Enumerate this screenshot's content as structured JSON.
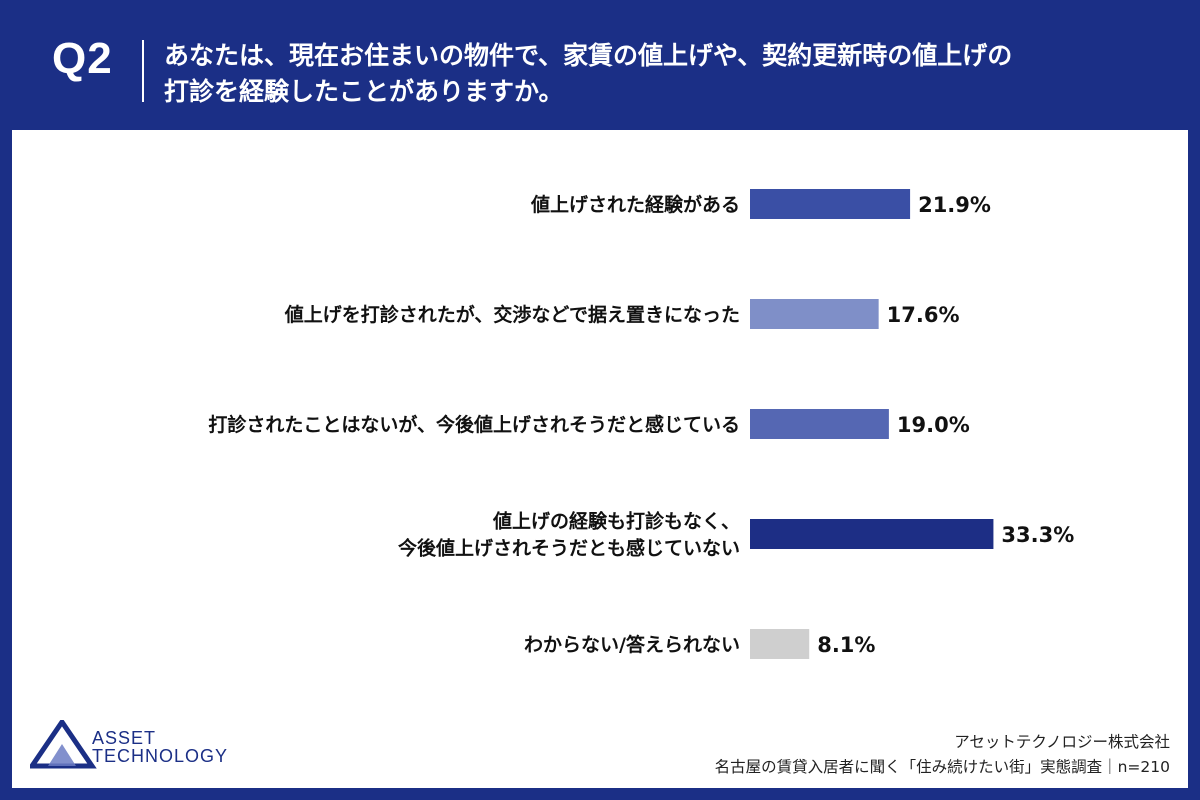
{
  "header": {
    "qnum": "Q2",
    "line1": "あなたは、現在お住まいの物件で、家賃の値上げや、契約更新時の値上げの",
    "line2": "打診を経験したことがありますか。"
  },
  "chart_data": {
    "type": "bar",
    "orientation": "horizontal",
    "categories": [
      [
        "値上げされた経験がある"
      ],
      [
        "値上げを打診されたが、交渉などで据え置きになった"
      ],
      [
        "打診されたことはないが、今後値上げされそうだと感じている"
      ],
      [
        "値上げの経験も打診もなく、",
        "今後値上げされそうだとも感じていない"
      ],
      [
        "わからない/答えられない"
      ]
    ],
    "values": [
      21.9,
      17.6,
      19.0,
      33.3,
      8.1
    ],
    "value_labels": [
      "21.9%",
      "17.6%",
      "19.0%",
      "33.3%",
      "8.1%"
    ],
    "colors": [
      "#3a4fa5",
      "#7f8fc8",
      "#5567b3",
      "#1d2e85",
      "#cfcfcf"
    ],
    "xlim": [
      0,
      100
    ],
    "title": "",
    "xlabel": "",
    "ylabel": "",
    "grid": false,
    "legend": "none"
  },
  "logo": {
    "line1": "ASSET",
    "line2": "TECHNOLOGY"
  },
  "footer": {
    "company": "アセットテクノロジー株式会社",
    "survey": "名古屋の賃貸入居者に聞く「住み続けたい街」実態調査｜n=210"
  }
}
